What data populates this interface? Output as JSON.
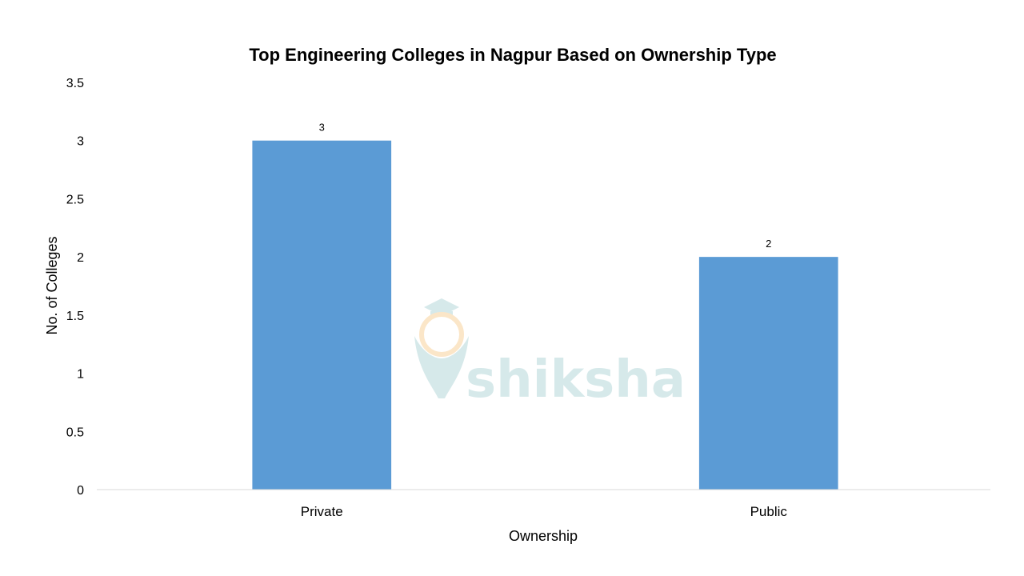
{
  "chart_data": {
    "type": "bar",
    "title": "Top Engineering Colleges in Nagpur Based on Ownership Type",
    "xlabel": "Ownership",
    "ylabel": "No. of Colleges",
    "categories": [
      "Private",
      "Public"
    ],
    "values": [
      3,
      2
    ],
    "data_labels": [
      "3",
      "2"
    ],
    "ylim": [
      0,
      3.5
    ],
    "y_ticks": [
      0,
      0.5,
      1,
      1.5,
      2,
      2.5,
      3,
      3.5
    ],
    "y_tick_labels": [
      "0",
      "0.5",
      "1",
      "1.5",
      "2",
      "2.5",
      "3",
      "3.5"
    ],
    "grid": false,
    "legend": "none",
    "bar_color": "#5b9bd5",
    "axis_color": "#d9d9d9"
  },
  "watermark": {
    "text": "shiksha",
    "colors": {
      "main": "#d6e9ea",
      "accent": "#fbe6c8"
    }
  }
}
